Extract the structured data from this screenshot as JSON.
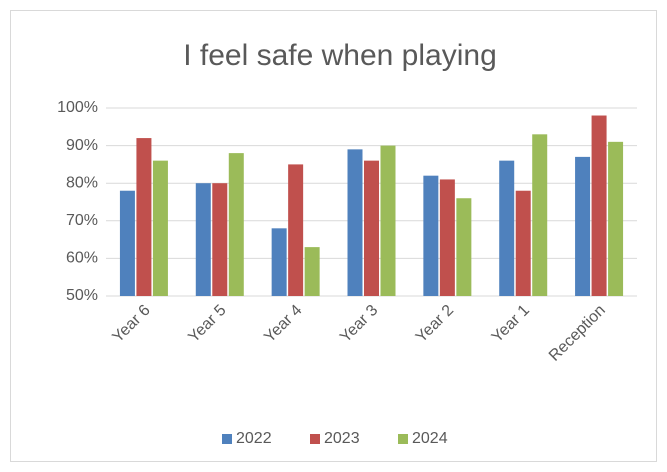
{
  "chart_data": {
    "type": "bar",
    "title": "I feel safe when playing",
    "categories": [
      "Year 6",
      "Year 5",
      "Year 4",
      "Year 3",
      "Year 2",
      "Year 1",
      "Reception"
    ],
    "series": [
      {
        "name": "2022",
        "color": "#4f81bd",
        "values": [
          78,
          80,
          68,
          89,
          82,
          86,
          87
        ]
      },
      {
        "name": "2023",
        "color": "#c0504d",
        "values": [
          92,
          80,
          85,
          86,
          81,
          78,
          98
        ]
      },
      {
        "name": "2024",
        "color": "#9bbb59",
        "values": [
          86,
          88,
          63,
          90,
          76,
          93,
          91
        ]
      }
    ],
    "ylim": [
      50,
      100
    ],
    "yticks": [
      {
        "value": 50,
        "label": "50%"
      },
      {
        "value": 60,
        "label": "60%"
      },
      {
        "value": 70,
        "label": "70%"
      },
      {
        "value": 80,
        "label": "80%"
      },
      {
        "value": 90,
        "label": "90%"
      },
      {
        "value": 100,
        "label": "100%"
      }
    ],
    "grid": true,
    "legend": "bottom"
  }
}
